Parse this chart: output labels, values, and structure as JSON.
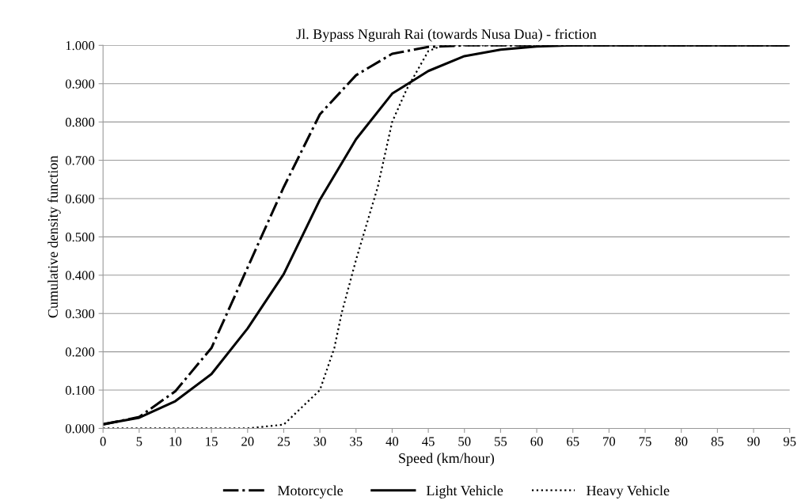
{
  "chart_data": {
    "type": "line",
    "title": "Jl. Bypass Ngurah Rai (towards Nusa Dua) - friction",
    "xlabel": "Speed (km/hour)",
    "ylabel": "Cumulative density function",
    "xlim": [
      0,
      95
    ],
    "xticks": [
      0,
      5,
      10,
      15,
      20,
      25,
      30,
      35,
      40,
      45,
      50,
      55,
      60,
      65,
      70,
      75,
      80,
      85,
      90,
      95
    ],
    "ylim": [
      0,
      1
    ],
    "yticks": [
      {
        "value": 0,
        "label": "0.000"
      },
      {
        "value": 0.1,
        "label": "0.100"
      },
      {
        "value": 0.2,
        "label": "0.200"
      },
      {
        "value": 0.3,
        "label": "0.300"
      },
      {
        "value": 0.4,
        "label": "0.400"
      },
      {
        "value": 0.5,
        "label": "0.500"
      },
      {
        "value": 0.6,
        "label": "0.600"
      },
      {
        "value": 0.7,
        "label": "0.700"
      },
      {
        "value": 0.8,
        "label": "0.800"
      },
      {
        "value": 0.9,
        "label": "0.900"
      },
      {
        "value": 1,
        "label": "1.000"
      }
    ],
    "grid": "y",
    "legend": "bottom",
    "marker": "none",
    "series": [
      {
        "name": "Motorcycle",
        "color": "#000000",
        "line_style": "dashdot",
        "x": [
          0,
          5,
          10,
          15,
          20,
          25,
          30,
          35,
          40,
          45,
          50,
          55,
          60,
          65,
          70,
          75,
          80,
          85,
          90,
          95
        ],
        "values": [
          0.01,
          0.03,
          0.097,
          0.21,
          0.42,
          0.63,
          0.82,
          0.922,
          0.978,
          0.996,
          1,
          1,
          1,
          1,
          1,
          1,
          1,
          1,
          1,
          1
        ]
      },
      {
        "name": "Light Vehicle",
        "color": "#000000",
        "line_style": "solid",
        "x": [
          0,
          5,
          10,
          15,
          20,
          25,
          30,
          35,
          40,
          45,
          50,
          55,
          60,
          65,
          70,
          75,
          80,
          85,
          90,
          95
        ],
        "values": [
          0.011,
          0.028,
          0.071,
          0.142,
          0.261,
          0.403,
          0.597,
          0.755,
          0.874,
          0.933,
          0.972,
          0.989,
          0.997,
          1,
          1,
          1,
          1,
          1,
          1,
          1
        ]
      },
      {
        "name": "Heavy Vehicle",
        "color": "#000000",
        "line_style": "dotted",
        "x": [
          0,
          5,
          10,
          15,
          20,
          25,
          30,
          32,
          33,
          35,
          38,
          40,
          42,
          45,
          47,
          50,
          55,
          60,
          65,
          70,
          75,
          80,
          85,
          90,
          95
        ],
        "values": [
          0,
          0,
          0,
          0,
          0,
          0.01,
          0.1,
          0.21,
          0.3,
          0.44,
          0.63,
          0.8,
          0.885,
          0.985,
          1,
          1,
          1,
          1,
          1,
          1,
          1,
          1,
          1,
          1,
          1
        ]
      }
    ]
  }
}
